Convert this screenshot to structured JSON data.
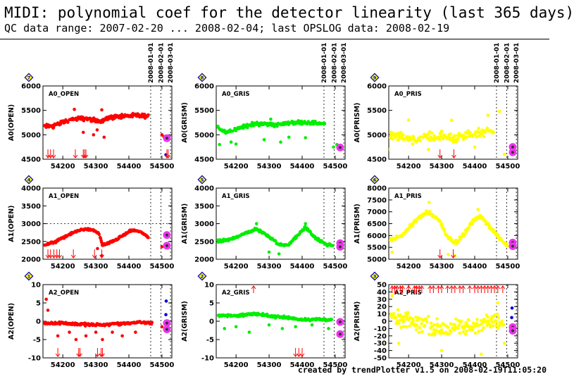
{
  "header": {
    "title": "MIDI: polynomial coef for the detector linearity (last 365 days)",
    "subtitle": "QC data range: 2007-02-20 ... 2008-02-04; last OPSLOG data: 2008-02-19"
  },
  "footer": "created by trendPlotter v1.5 on 2008-02-19T11:05:20",
  "x_axis": {
    "range": [
      54140,
      54530
    ],
    "ticks": [
      54200,
      54300,
      54400,
      54500
    ]
  },
  "date_markers": [
    {
      "label": "2008-01-01",
      "mjd": 54466
    },
    {
      "label": "2008-02-01",
      "mjd": 54497
    },
    {
      "label": "2008-03-01",
      "mjd": 54526
    }
  ],
  "badges": [
    "7",
    "8",
    "9",
    "4",
    "5",
    "6",
    "1",
    "2",
    "3"
  ],
  "colors": {
    "red": "#ff0000",
    "green": "#00ee00",
    "yellow": "#ffff00",
    "magenta": "#ee33ee",
    "blue": "#0000dd"
  },
  "chart_data": [
    {
      "type": "scatter",
      "panel_label": "A0_OPEN",
      "ylabel": "A0(OPEN)",
      "ylim": [
        4500,
        6000
      ],
      "yticks": [
        4500,
        5000,
        5500,
        6000
      ],
      "color": "#ff0000",
      "baseline": [
        [
          54145,
          5170
        ],
        [
          54170,
          5180
        ],
        [
          54200,
          5260
        ],
        [
          54230,
          5320
        ],
        [
          54270,
          5330
        ],
        [
          54310,
          5280
        ],
        [
          54340,
          5350
        ],
        [
          54380,
          5380
        ],
        [
          54420,
          5390
        ],
        [
          54460,
          5380
        ]
      ],
      "spread": 60,
      "outliers": [
        [
          54235,
          5520
        ],
        [
          54262,
          5050
        ],
        [
          54293,
          5000
        ],
        [
          54304,
          5100
        ],
        [
          54318,
          5510
        ],
        [
          54325,
          4950
        ],
        [
          54500,
          5000
        ],
        [
          54506,
          4960
        ]
      ],
      "highlight": [
        [
          54515,
          4930
        ]
      ],
      "blue": [
        [
          54512,
          4590
        ]
      ],
      "arrows_bottom": [
        54155,
        54163,
        54172,
        54238,
        54262,
        54266,
        54270,
        54515,
        54519
      ]
    },
    {
      "type": "scatter",
      "panel_label": "A0_GRIS",
      "ylabel": "A0(GRISM)",
      "ylim": [
        4500,
        6000
      ],
      "yticks": [
        4500,
        5000,
        5500,
        6000
      ],
      "color": "#00ee00",
      "baseline": [
        [
          54145,
          5150
        ],
        [
          54170,
          5050
        ],
        [
          54200,
          5120
        ],
        [
          54240,
          5200
        ],
        [
          54280,
          5230
        ],
        [
          54320,
          5200
        ],
        [
          54360,
          5240
        ],
        [
          54400,
          5260
        ],
        [
          54440,
          5240
        ],
        [
          54470,
          5220
        ]
      ],
      "spread": 55,
      "outliers": [
        [
          54150,
          4800
        ],
        [
          54185,
          4850
        ],
        [
          54200,
          4810
        ],
        [
          54285,
          4900
        ],
        [
          54305,
          5320
        ],
        [
          54335,
          4850
        ],
        [
          54360,
          4950
        ],
        [
          54410,
          4940
        ],
        [
          54495,
          4750
        ],
        [
          54505,
          4800
        ]
      ],
      "highlight": [
        [
          54515,
          4740
        ]
      ],
      "blue": [],
      "arrows_bottom": []
    },
    {
      "type": "scatter",
      "panel_label": "A0_PRIS",
      "ylabel": "A0(PRISM)",
      "ylim": [
        4500,
        6000
      ],
      "yticks": [
        4500,
        5000,
        5500,
        6000
      ],
      "color": "#ffff00",
      "baseline": [
        [
          54145,
          4980
        ],
        [
          54180,
          4950
        ],
        [
          54220,
          4900
        ],
        [
          54260,
          4950
        ],
        [
          54300,
          4960
        ],
        [
          54340,
          4930
        ],
        [
          54380,
          4980
        ],
        [
          54420,
          5050
        ],
        [
          54460,
          5100
        ]
      ],
      "spread": 140,
      "outliers": [
        [
          54140,
          4700
        ],
        [
          54200,
          5300
        ],
        [
          54260,
          4700
        ],
        [
          54330,
          5300
        ],
        [
          54400,
          4750
        ],
        [
          54440,
          5400
        ],
        [
          54475,
          5480
        ],
        [
          54490,
          4600
        ]
      ],
      "highlight": [
        [
          54515,
          4750
        ],
        [
          54515,
          4640
        ]
      ],
      "blue": [],
      "arrows_bottom": [
        54295,
        54337
      ]
    },
    {
      "type": "scatter",
      "panel_label": "A1_OPEN",
      "ylabel": "A1(OPEN)",
      "ylim": [
        2000,
        4000
      ],
      "yticks": [
        2000,
        2500,
        3000,
        3500,
        4000
      ],
      "color": "#ff0000",
      "ref_line": 3000,
      "baseline": [
        [
          54145,
          2400
        ],
        [
          54180,
          2500
        ],
        [
          54220,
          2700
        ],
        [
          54260,
          2850
        ],
        [
          54295,
          2820
        ],
        [
          54310,
          2700
        ],
        [
          54320,
          2400
        ],
        [
          54340,
          2450
        ],
        [
          54370,
          2600
        ],
        [
          54410,
          2820
        ],
        [
          54440,
          2750
        ],
        [
          54460,
          2600
        ]
      ],
      "spread": 45,
      "outliers": [
        [
          54305,
          2300
        ],
        [
          54318,
          2100
        ],
        [
          54500,
          2350
        ]
      ],
      "highlight": [
        [
          54515,
          2680
        ],
        [
          54515,
          2380
        ]
      ],
      "blue": [],
      "arrows_bottom": [
        54155,
        54163,
        54173,
        54182,
        54190,
        54232,
        54296,
        54318
      ]
    },
    {
      "type": "scatter",
      "panel_label": "A1_GRIS",
      "ylabel": "A1(GRISM)",
      "ylim": [
        2000,
        4000
      ],
      "yticks": [
        2000,
        2500,
        3000,
        3500,
        4000
      ],
      "color": "#00ee00",
      "baseline": [
        [
          54145,
          2500
        ],
        [
          54180,
          2550
        ],
        [
          54220,
          2700
        ],
        [
          54260,
          2850
        ],
        [
          54300,
          2650
        ],
        [
          54330,
          2400
        ],
        [
          54360,
          2420
        ],
        [
          54390,
          2700
        ],
        [
          54410,
          2900
        ],
        [
          54440,
          2600
        ],
        [
          54470,
          2420
        ],
        [
          54495,
          2380
        ]
      ],
      "spread": 50,
      "outliers": [
        [
          54262,
          3000
        ],
        [
          54300,
          2200
        ],
        [
          54330,
          2150
        ],
        [
          54410,
          3000
        ]
      ],
      "highlight": [
        [
          54515,
          2450
        ],
        [
          54515,
          2350
        ]
      ],
      "blue": [],
      "arrows_bottom": []
    },
    {
      "type": "scatter",
      "panel_label": "A1_PRIS",
      "ylabel": "A1(PRISM)",
      "ylim": [
        5000,
        8000
      ],
      "yticks": [
        5000,
        5500,
        6000,
        6500,
        7000,
        7500,
        8000
      ],
      "color": "#ffff00",
      "baseline": [
        [
          54145,
          5800
        ],
        [
          54180,
          6000
        ],
        [
          54220,
          6600
        ],
        [
          54255,
          7000
        ],
        [
          54290,
          6700
        ],
        [
          54320,
          5900
        ],
        [
          54345,
          5700
        ],
        [
          54370,
          6100
        ],
        [
          54400,
          6700
        ],
        [
          54420,
          6800
        ],
        [
          54450,
          6300
        ],
        [
          54480,
          5800
        ],
        [
          54500,
          5600
        ]
      ],
      "spread": 110,
      "outliers": [
        [
          54150,
          5300
        ],
        [
          54262,
          7400
        ],
        [
          54320,
          5200
        ],
        [
          54410,
          7100
        ],
        [
          54340,
          5150
        ]
      ],
      "highlight": [
        [
          54515,
          5700
        ],
        [
          54515,
          5550
        ]
      ],
      "blue": [],
      "arrows_bottom": [
        54295,
        54335
      ]
    },
    {
      "type": "scatter",
      "panel_label": "A2_OPEN",
      "ylabel": "A2(OPEN)",
      "ylim": [
        -10,
        10
      ],
      "yticks": [
        -10,
        -5,
        0,
        5,
        10
      ],
      "color": "#ff0000",
      "baseline": [
        [
          54145,
          -0.5
        ],
        [
          54200,
          -0.5
        ],
        [
          54250,
          -0.8
        ],
        [
          54300,
          -1.0
        ],
        [
          54350,
          -0.8
        ],
        [
          54400,
          -0.5
        ],
        [
          54440,
          -0.3
        ],
        [
          54470,
          -0.5
        ]
      ],
      "spread": 0.5,
      "outliers": [
        [
          54150,
          6
        ],
        [
          54155,
          3
        ],
        [
          54185,
          -4
        ],
        [
          54220,
          -3
        ],
        [
          54240,
          -5
        ],
        [
          54270,
          -4
        ],
        [
          54300,
          -3
        ],
        [
          54320,
          -5
        ],
        [
          54350,
          -3
        ],
        [
          54380,
          -4
        ],
        [
          54420,
          -3
        ],
        [
          54500,
          -1.5
        ]
      ],
      "highlight": [
        [
          54515,
          -0.5
        ],
        [
          54515,
          -2.2
        ]
      ],
      "blue": [
        [
          54513,
          5.5
        ],
        [
          54512,
          1.8
        ]
      ],
      "arrows_bottom": [
        54185,
        54248,
        54252,
        54305,
        54316,
        54320
      ]
    },
    {
      "type": "scatter",
      "panel_label": "A2_GRIS",
      "ylabel": "A2(GRISM)",
      "ylim": [
        -10,
        10
      ],
      "yticks": [
        -10,
        -5,
        0,
        5,
        10
      ],
      "color": "#00ee00",
      "baseline": [
        [
          54145,
          1.5
        ],
        [
          54200,
          1.5
        ],
        [
          54250,
          2.0
        ],
        [
          54300,
          1.5
        ],
        [
          54350,
          1.0
        ],
        [
          54400,
          0.5
        ],
        [
          54450,
          0.5
        ],
        [
          54490,
          0.3
        ]
      ],
      "spread": 0.5,
      "outliers": [
        [
          54165,
          -2
        ],
        [
          54200,
          -1.5
        ],
        [
          54240,
          -3
        ],
        [
          54300,
          -1
        ],
        [
          54340,
          -2
        ],
        [
          54380,
          -1.5
        ],
        [
          54430,
          -1
        ],
        [
          54480,
          -2
        ]
      ],
      "highlight": [
        [
          54515,
          -0.2
        ],
        [
          54515,
          -3.5
        ]
      ],
      "blue": [],
      "arrows_bottom": [
        54380,
        54390,
        54400
      ],
      "arrows_top": [
        54253
      ]
    },
    {
      "type": "scatter",
      "panel_label": "A2_PRIS",
      "ylabel": "A2(PRISM)",
      "ylim": [
        -50,
        50
      ],
      "yticks": [
        -50,
        -40,
        -30,
        -20,
        -10,
        0,
        10,
        20,
        30,
        40,
        50
      ],
      "color": "#ffff00",
      "baseline": [
        [
          54145,
          5
        ],
        [
          54200,
          0
        ],
        [
          54250,
          -5
        ],
        [
          54300,
          -10
        ],
        [
          54350,
          -10
        ],
        [
          54400,
          -5
        ],
        [
          54450,
          0
        ],
        [
          54490,
          -5
        ]
      ],
      "spread": 16,
      "outliers": [
        [
          54150,
          35
        ],
        [
          54170,
          -30
        ],
        [
          54300,
          -40
        ],
        [
          54420,
          -45
        ],
        [
          54470,
          25
        ],
        [
          54490,
          -30
        ]
      ],
      "highlight": [
        [
          54515,
          -8
        ],
        [
          54515,
          -13
        ]
      ],
      "blue": [
        [
          54513,
          18
        ],
        [
          54512,
          5
        ]
      ],
      "arrows_top": [
        54150,
        54158,
        54165,
        54175,
        54182,
        54200,
        54218,
        54224,
        54232,
        54240,
        54265,
        54275,
        54290,
        54300,
        54318,
        54330,
        54340,
        54355,
        54365,
        54385,
        54400,
        54410,
        54420,
        54430,
        54440,
        54450,
        54460,
        54470,
        54485
      ]
    }
  ]
}
